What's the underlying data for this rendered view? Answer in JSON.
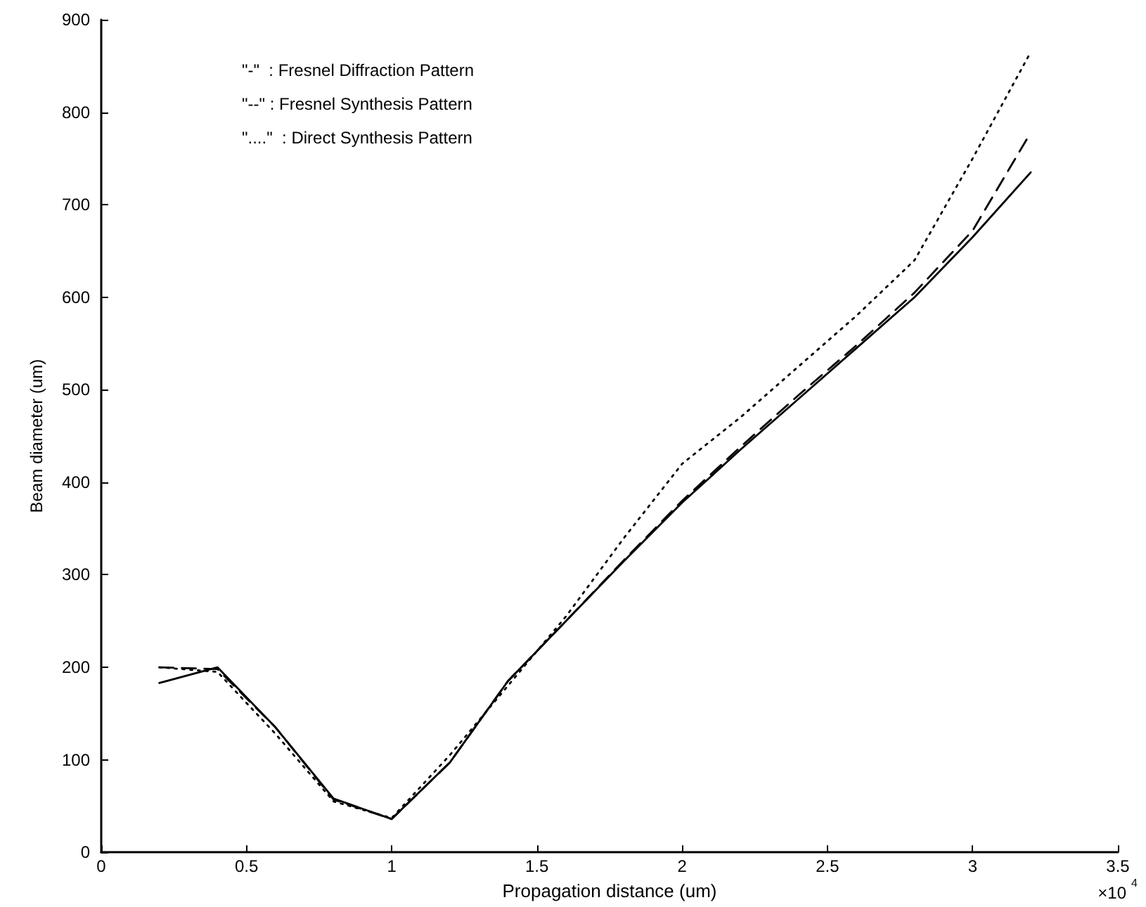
{
  "chart_data": {
    "type": "line",
    "xlabel": "Propagation distance (um)",
    "ylabel": "Beam diameter (um)",
    "annotations": [
      "\"-\"  : Fresnel Diffraction Pattern",
      "\"--\" : Fresnel Synthesis Pattern",
      "\"....\"  : Direct Synthesis Pattern",
      "×10$^{4}$"
    ],
    "x": [
      0.2,
      0.4,
      0.6,
      0.8,
      1.0,
      1.2,
      1.4,
      1.6,
      1.8,
      2.0,
      2.2,
      2.4,
      2.6,
      2.8,
      3.0,
      3.2
    ],
    "series": [
      {
        "color": "#000000",
        "line_style": "solid",
        "values": [
          183,
          200,
          135,
          58,
          36,
          97,
          185,
          250,
          315,
          378,
          435,
          490,
          545,
          600,
          665,
          735
        ]
      },
      {
        "color": "#000000",
        "line_style": "dashed",
        "values": [
          200,
          198,
          135,
          57,
          36,
          97,
          185,
          250,
          316,
          380,
          438,
          494,
          548,
          605,
          672,
          778
        ]
      },
      {
        "color": "#000000",
        "line_style": "dotted",
        "values": [
          200,
          195,
          128,
          55,
          37,
          105,
          180,
          255,
          340,
          420,
          470,
          525,
          580,
          640,
          750,
          865
        ]
      }
    ],
    "xlim": [
      0,
      3.5
    ],
    "xticks": [
      0,
      0.5,
      1,
      1.5,
      2,
      2.5,
      3,
      3.5
    ],
    "ylim": [
      0,
      900
    ],
    "yticks": [
      0,
      100,
      200,
      300,
      400,
      500,
      600,
      700,
      800,
      900
    ],
    "grid": false,
    "marker": "none"
  }
}
